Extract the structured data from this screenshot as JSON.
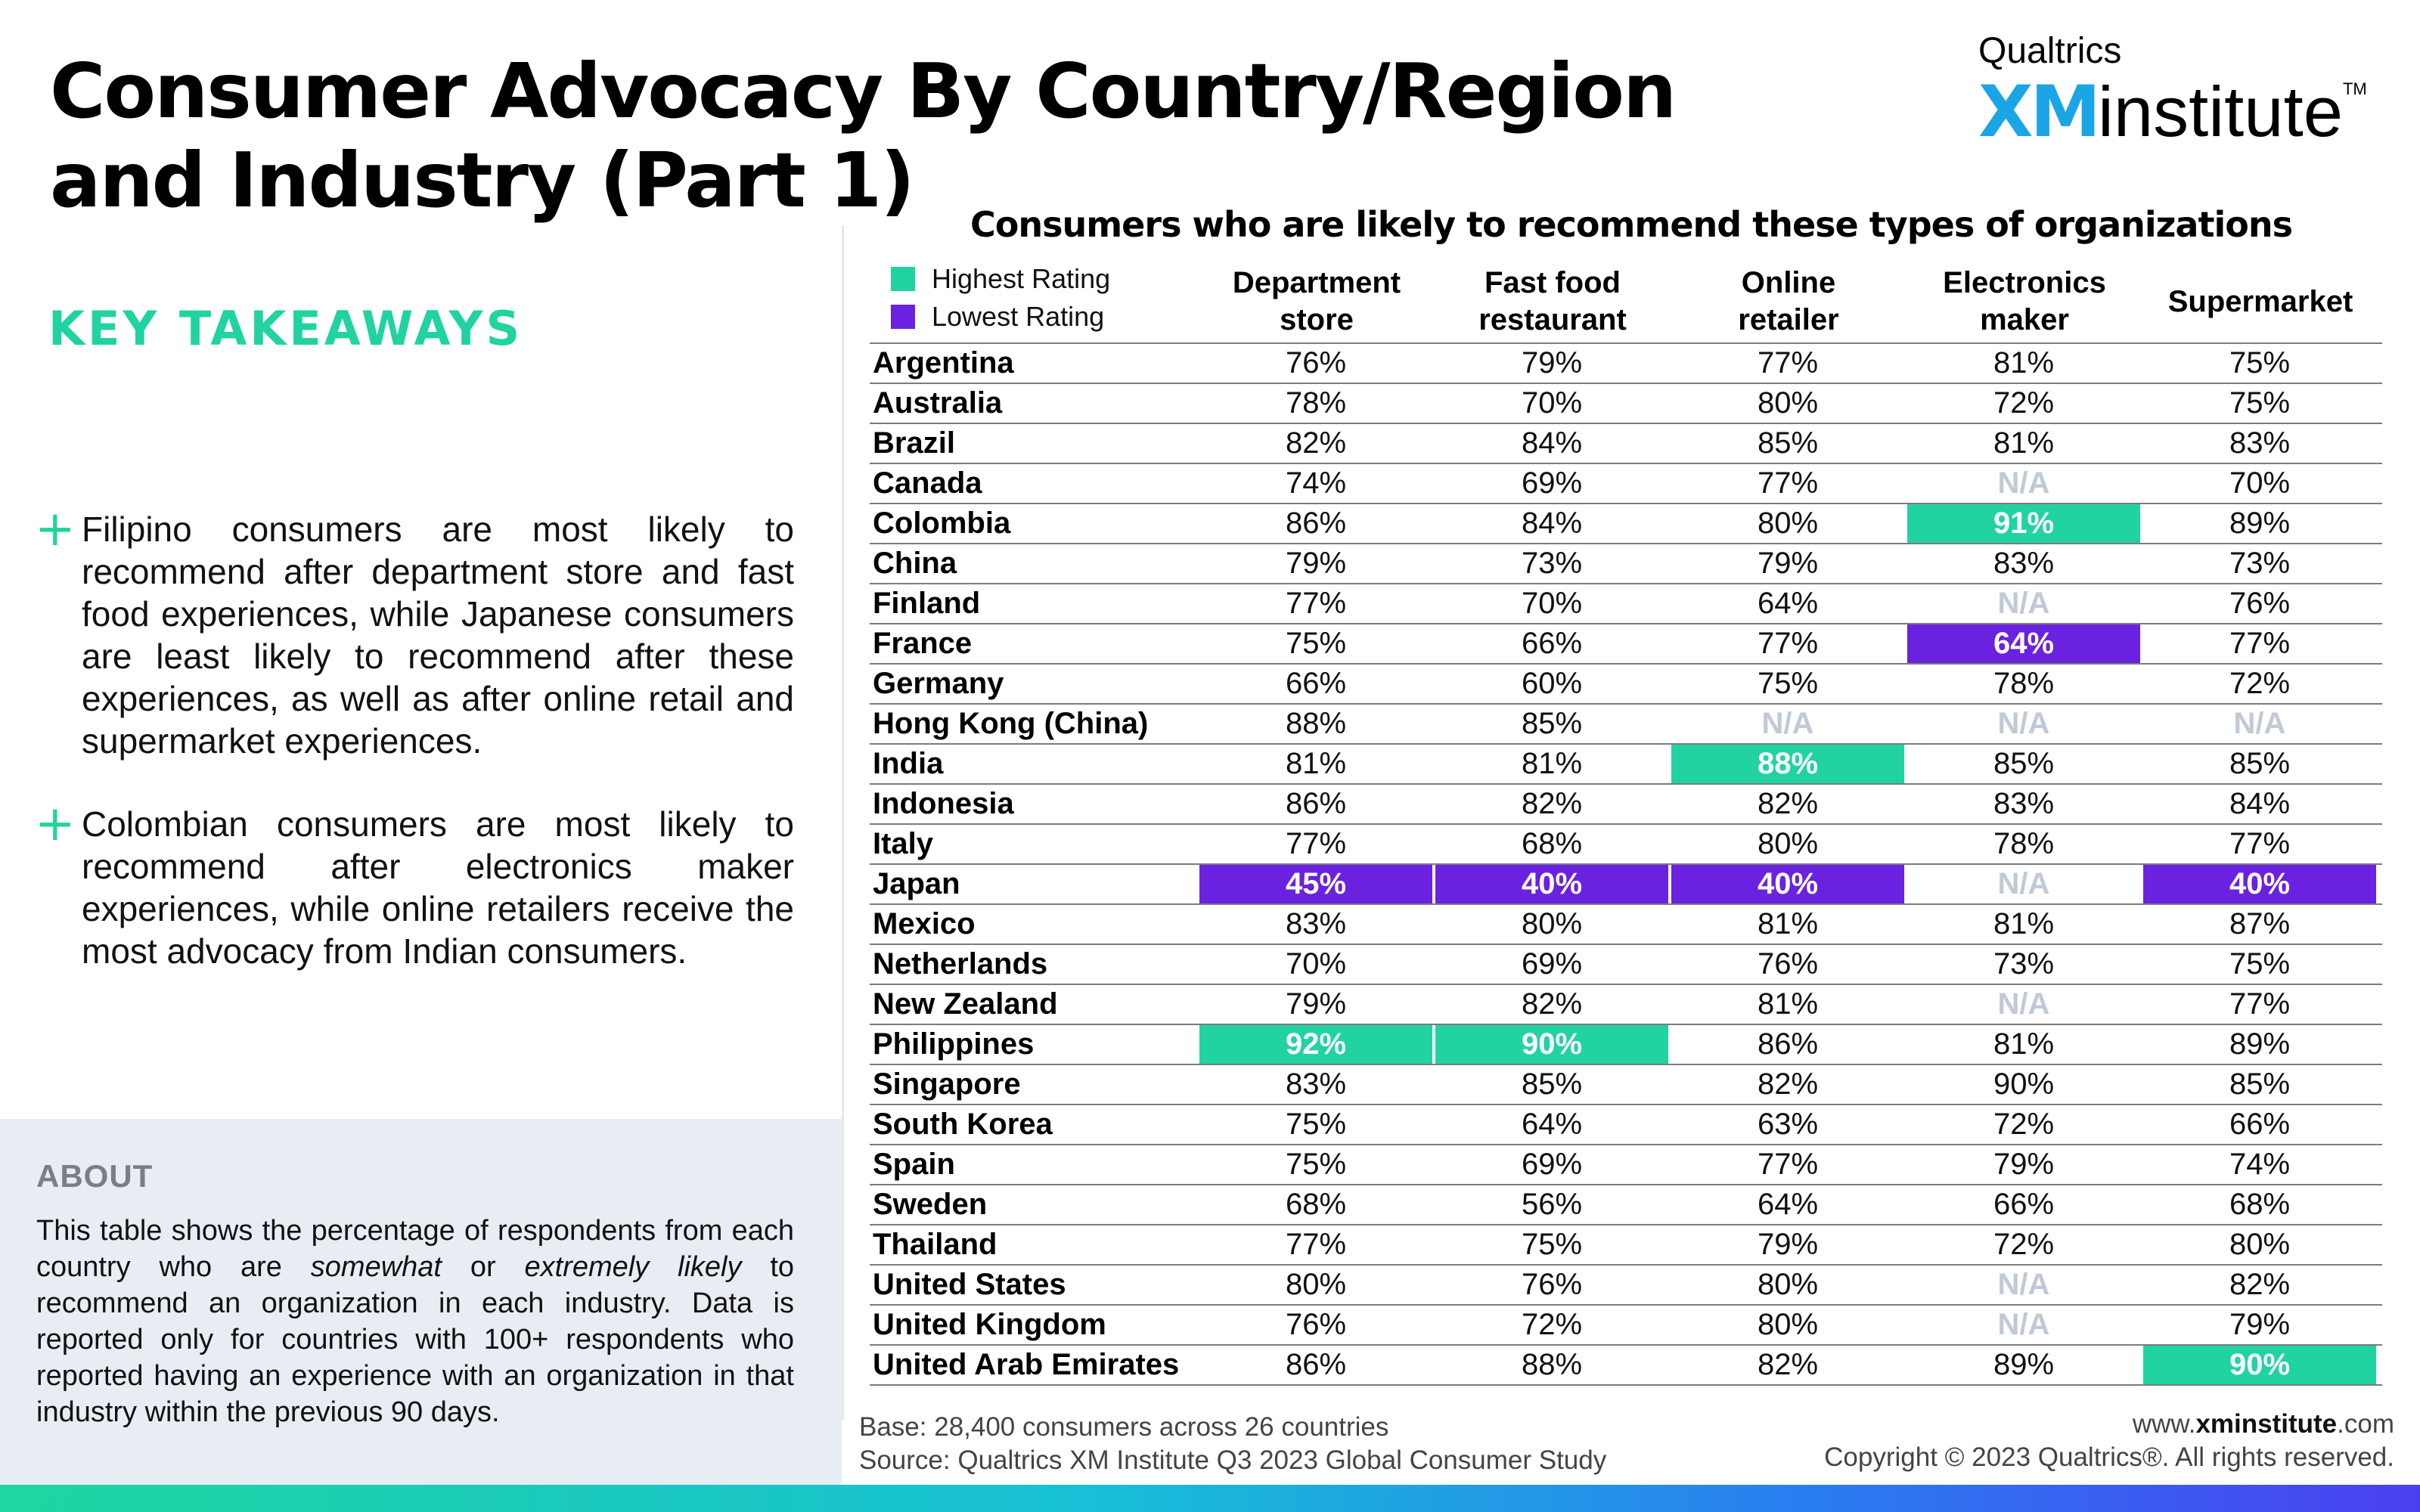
{
  "title": "Consumer Advocacy By Country/Region and Industry (Part 1)",
  "logo": {
    "brand": "Qualtrics",
    "xm": "XM",
    "institute": "institute",
    "tm": "TM"
  },
  "takeaways": {
    "heading": "KEY TAKEAWAYS",
    "bullets": [
      "Filipino consumers are most likely to recommend after department store and fast food experiences, while Japanese consumers are least likely to recommend after these experiences, as well as after online retail and supermarket experiences.",
      "Colombian consumers are most likely to recommend after electronics maker experiences, while online retailers receive the most advocacy from Indian consumers."
    ]
  },
  "about": {
    "heading": "ABOUT",
    "text_a": "This table shows the percentage of respondents from each country who are ",
    "text_em1": "somewhat",
    "text_b": " or ",
    "text_em2": "extremely likely",
    "text_c": " to recommend an organization in each industry. Data is reported only for countries with 100+ respondents who reported having an experience with an organization in that industry within the previous 90 days."
  },
  "table": {
    "heading": "Consumers who are likely to recommend these types of organizations",
    "legend": {
      "highest": "Highest Rating",
      "lowest": "Lowest Rating"
    },
    "colors": {
      "highest": "#22d3a2",
      "lowest": "#6a21e0",
      "na": "#bfcad6"
    },
    "columns": [
      [
        "Department",
        "store"
      ],
      [
        "Fast food",
        "restaurant"
      ],
      [
        "Online",
        "retailer"
      ],
      [
        "Electronics",
        "maker"
      ],
      [
        "Supermarket"
      ]
    ],
    "rows": [
      {
        "country": "Argentina",
        "values": [
          "76%",
          "79%",
          "77%",
          "81%",
          "75%"
        ],
        "flags": [
          "",
          "",
          "",
          "",
          ""
        ]
      },
      {
        "country": "Australia",
        "values": [
          "78%",
          "70%",
          "80%",
          "72%",
          "75%"
        ],
        "flags": [
          "",
          "",
          "",
          "",
          ""
        ]
      },
      {
        "country": "Brazil",
        "values": [
          "82%",
          "84%",
          "85%",
          "81%",
          "83%"
        ],
        "flags": [
          "",
          "",
          "",
          "",
          ""
        ]
      },
      {
        "country": "Canada",
        "values": [
          "74%",
          "69%",
          "77%",
          "N/A",
          "70%"
        ],
        "flags": [
          "",
          "",
          "",
          "na",
          ""
        ]
      },
      {
        "country": "Colombia",
        "values": [
          "86%",
          "84%",
          "80%",
          "91%",
          "89%"
        ],
        "flags": [
          "",
          "",
          "",
          "hi",
          ""
        ]
      },
      {
        "country": "China",
        "values": [
          "79%",
          "73%",
          "79%",
          "83%",
          "73%"
        ],
        "flags": [
          "",
          "",
          "",
          "",
          ""
        ]
      },
      {
        "country": "Finland",
        "values": [
          "77%",
          "70%",
          "64%",
          "N/A",
          "76%"
        ],
        "flags": [
          "",
          "",
          "",
          "na",
          ""
        ]
      },
      {
        "country": "France",
        "values": [
          "75%",
          "66%",
          "77%",
          "64%",
          "77%"
        ],
        "flags": [
          "",
          "",
          "",
          "lo",
          ""
        ]
      },
      {
        "country": "Germany",
        "values": [
          "66%",
          "60%",
          "75%",
          "78%",
          "72%"
        ],
        "flags": [
          "",
          "",
          "",
          "",
          ""
        ]
      },
      {
        "country": "Hong Kong (China)",
        "values": [
          "88%",
          "85%",
          "N/A",
          "N/A",
          "N/A"
        ],
        "flags": [
          "",
          "",
          "na",
          "na",
          "na"
        ]
      },
      {
        "country": "India",
        "values": [
          "81%",
          "81%",
          "88%",
          "85%",
          "85%"
        ],
        "flags": [
          "",
          "",
          "hi",
          "",
          ""
        ]
      },
      {
        "country": "Indonesia",
        "values": [
          "86%",
          "82%",
          "82%",
          "83%",
          "84%"
        ],
        "flags": [
          "",
          "",
          "",
          "",
          ""
        ]
      },
      {
        "country": "Italy",
        "values": [
          "77%",
          "68%",
          "80%",
          "78%",
          "77%"
        ],
        "flags": [
          "",
          "",
          "",
          "",
          ""
        ]
      },
      {
        "country": "Japan",
        "values": [
          "45%",
          "40%",
          "40%",
          "N/A",
          "40%"
        ],
        "flags": [
          "lo",
          "lo",
          "lo",
          "na",
          "lo"
        ]
      },
      {
        "country": "Mexico",
        "values": [
          "83%",
          "80%",
          "81%",
          "81%",
          "87%"
        ],
        "flags": [
          "",
          "",
          "",
          "",
          ""
        ]
      },
      {
        "country": "Netherlands",
        "values": [
          "70%",
          "69%",
          "76%",
          "73%",
          "75%"
        ],
        "flags": [
          "",
          "",
          "",
          "",
          ""
        ]
      },
      {
        "country": "New Zealand",
        "values": [
          "79%",
          "82%",
          "81%",
          "N/A",
          "77%"
        ],
        "flags": [
          "",
          "",
          "",
          "na",
          ""
        ]
      },
      {
        "country": "Philippines",
        "values": [
          "92%",
          "90%",
          "86%",
          "81%",
          "89%"
        ],
        "flags": [
          "hi",
          "hi",
          "",
          "",
          ""
        ]
      },
      {
        "country": "Singapore",
        "values": [
          "83%",
          "85%",
          "82%",
          "90%",
          "85%"
        ],
        "flags": [
          "",
          "",
          "",
          "",
          ""
        ]
      },
      {
        "country": "South Korea",
        "values": [
          "75%",
          "64%",
          "63%",
          "72%",
          "66%"
        ],
        "flags": [
          "",
          "",
          "",
          "",
          ""
        ]
      },
      {
        "country": "Spain",
        "values": [
          "75%",
          "69%",
          "77%",
          "79%",
          "74%"
        ],
        "flags": [
          "",
          "",
          "",
          "",
          ""
        ]
      },
      {
        "country": "Sweden",
        "values": [
          "68%",
          "56%",
          "64%",
          "66%",
          "68%"
        ],
        "flags": [
          "",
          "",
          "",
          "",
          ""
        ]
      },
      {
        "country": "Thailand",
        "values": [
          "77%",
          "75%",
          "79%",
          "72%",
          "80%"
        ],
        "flags": [
          "",
          "",
          "",
          "",
          ""
        ]
      },
      {
        "country": "United States",
        "values": [
          "80%",
          "76%",
          "80%",
          "N/A",
          "82%"
        ],
        "flags": [
          "",
          "",
          "",
          "na",
          ""
        ]
      },
      {
        "country": "United Kingdom",
        "values": [
          "76%",
          "72%",
          "80%",
          "N/A",
          "79%"
        ],
        "flags": [
          "",
          "",
          "",
          "na",
          ""
        ]
      },
      {
        "country": "United Arab Emirates",
        "values": [
          "86%",
          "88%",
          "82%",
          "89%",
          "90%"
        ],
        "flags": [
          "",
          "",
          "",
          "",
          "hi"
        ]
      }
    ]
  },
  "footer": {
    "base": "Base: 28,400 consumers across 26 countries",
    "source": "Source: Qualtrics XM Institute Q3 2023 Global Consumer Study",
    "url_prefix": "www.",
    "url_domain": "xminstitute",
    "url_suffix": ".com",
    "copyright": "Copyright © 2023 Qualtrics®. All rights reserved."
  }
}
